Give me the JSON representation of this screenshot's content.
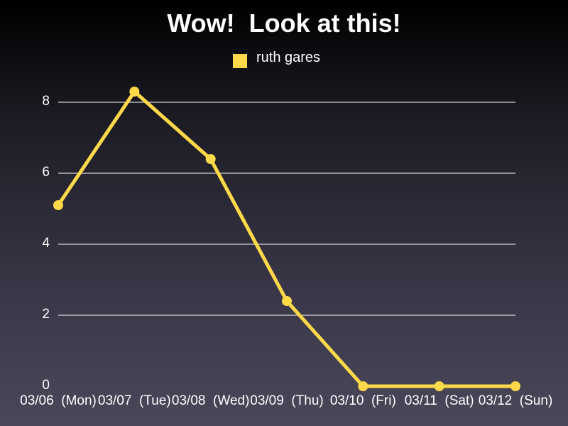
{
  "chart_data": {
    "type": "line",
    "title": "Wow!  Look at this!",
    "xlabel": "",
    "ylabel": "",
    "categories": [
      "03/06 (Mon)",
      "03/07 (Tue)",
      "03/08 (Wed)",
      "03/09 (Thu)",
      "03/10 (Fri)",
      "03/11 (Sat)",
      "03/12 (Sun)"
    ],
    "series": [
      {
        "name": "ruth gares",
        "color": "#ffd94a",
        "values": [
          5.1,
          8.3,
          6.4,
          2.4,
          0,
          0,
          0
        ]
      }
    ],
    "ylim": [
      0,
      8
    ],
    "yticks": [
      0,
      2,
      4,
      6,
      8
    ],
    "grid": true,
    "legend_position": "top-center"
  }
}
